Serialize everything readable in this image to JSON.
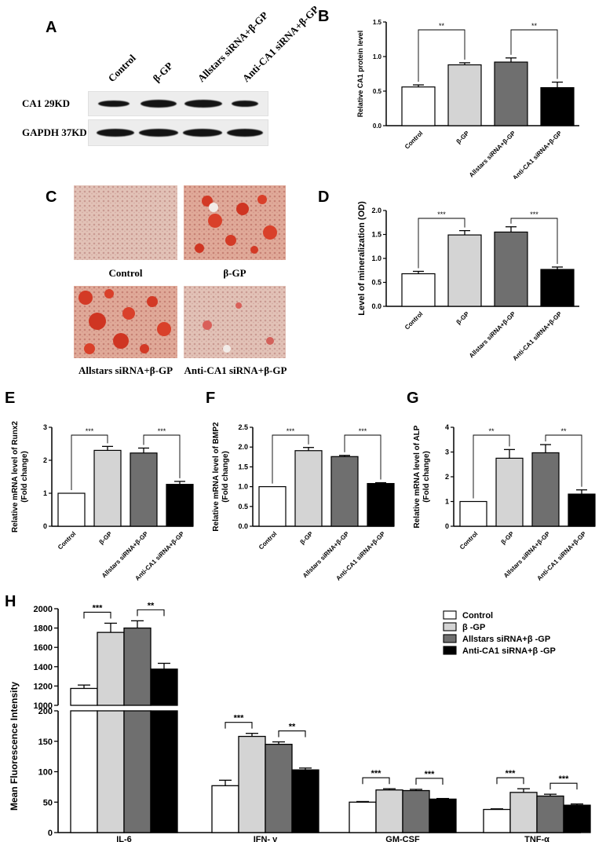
{
  "panels": {
    "a": "A",
    "b": "B",
    "c": "C",
    "d": "D",
    "e": "E",
    "f": "F",
    "g": "G",
    "h": "H"
  },
  "western_blot": {
    "lanes": [
      "Control",
      "β-GP",
      "Allstars siRNA+β-GP",
      "Anti-CA1 siRNA+β-GP"
    ],
    "rows": [
      "CA1  29KD",
      "GAPDH 37KD"
    ]
  },
  "staining": {
    "captions": [
      "Control",
      "β-GP",
      "Allstars siRNA+β-GP",
      "Anti-CA1 siRNA+β-GP"
    ]
  },
  "colors": {
    "control": "#ffffff",
    "bgp": "#d4d4d4",
    "allstars": "#6f6f6f",
    "anti": "#000000",
    "stain_red": "#d9402a",
    "stain_bg": "#e3b9a9"
  },
  "chart_data": [
    {
      "id": "B",
      "type": "bar",
      "categories": [
        "Control",
        "β-GP",
        "Allstars siRNA+β-GP",
        "Anti-CA1 siRNA+β-GP"
      ],
      "values": [
        0.56,
        0.88,
        0.92,
        0.55
      ],
      "errors": [
        0.03,
        0.03,
        0.06,
        0.08
      ],
      "ylabel": "Relative CA1 protein level",
      "ylim": [
        0,
        1.5
      ],
      "yticks": [
        0.0,
        0.5,
        1.0,
        1.5
      ],
      "annotations": [
        {
          "from": 0,
          "to": 1,
          "text": "**"
        },
        {
          "from": 2,
          "to": 3,
          "text": "**"
        }
      ]
    },
    {
      "id": "D",
      "type": "bar",
      "categories": [
        "Control",
        "β-GP",
        "Allstars siRNA+β-GP",
        "Anti-CA1 siRNA+β-GP"
      ],
      "values": [
        0.68,
        1.49,
        1.55,
        0.77
      ],
      "errors": [
        0.05,
        0.09,
        0.11,
        0.05
      ],
      "ylabel": "Level of mineralization (OD)",
      "ylim": [
        0,
        2.0
      ],
      "yticks": [
        0.0,
        0.5,
        1.0,
        1.5,
        2.0
      ],
      "annotations": [
        {
          "from": 0,
          "to": 1,
          "text": "***"
        },
        {
          "from": 2,
          "to": 3,
          "text": "***"
        }
      ]
    },
    {
      "id": "E",
      "type": "bar",
      "categories": [
        "Control",
        "β-GP",
        "Allstars siRNA+β-GP",
        "Anti-CA1 siRNA+β-GP"
      ],
      "values": [
        1.0,
        2.3,
        2.22,
        1.27
      ],
      "errors": [
        0.0,
        0.12,
        0.15,
        0.09
      ],
      "ylabel": "Relative mRNA level of Runx2\n(Fold change)",
      "ylim": [
        0,
        3
      ],
      "yticks": [
        0,
        1,
        2,
        3
      ],
      "annotations": [
        {
          "from": 0,
          "to": 1,
          "text": "***"
        },
        {
          "from": 2,
          "to": 3,
          "text": "***"
        }
      ]
    },
    {
      "id": "F",
      "type": "bar",
      "categories": [
        "Control",
        "β-GP",
        "Allstars siRNA+β-GP",
        "Anti-CA1 siRNA+β-GP"
      ],
      "values": [
        1.0,
        1.91,
        1.76,
        1.08
      ],
      "errors": [
        0.0,
        0.08,
        0.03,
        0.02
      ],
      "ylabel": "Relative mRNA level of BMP2\n(Fold change)",
      "ylim": [
        0,
        2.5
      ],
      "yticks": [
        0.0,
        0.5,
        1.0,
        1.5,
        2.0,
        2.5
      ],
      "annotations": [
        {
          "from": 0,
          "to": 1,
          "text": "***"
        },
        {
          "from": 2,
          "to": 3,
          "text": "***"
        }
      ]
    },
    {
      "id": "G",
      "type": "bar",
      "categories": [
        "Control",
        "β-GP",
        "Allstars siRNA+β-GP",
        "Anti-CA1 siRNA+β-GP"
      ],
      "values": [
        1.0,
        2.75,
        2.97,
        1.3
      ],
      "errors": [
        0.0,
        0.35,
        0.33,
        0.17
      ],
      "ylabel": "Relative mRNA level of ALP\n(Fold change)",
      "ylim": [
        0,
        4
      ],
      "yticks": [
        0,
        1,
        2,
        3,
        4
      ],
      "annotations": [
        {
          "from": 0,
          "to": 1,
          "text": "**"
        },
        {
          "from": 2,
          "to": 3,
          "text": "**"
        }
      ]
    },
    {
      "id": "H",
      "type": "bar",
      "categories": [
        "IL-6",
        "IFN- γ",
        "GM-CSF",
        "TNF-α"
      ],
      "series": [
        {
          "name": "Control",
          "values": [
            1175,
            77,
            50,
            38
          ],
          "errors": [
            35,
            9,
            1,
            1
          ]
        },
        {
          "name": "β -GP",
          "values": [
            1755,
            158,
            70,
            66
          ],
          "errors": [
            95,
            5,
            2,
            6
          ]
        },
        {
          "name": "Allstars siRNA+β -GP",
          "values": [
            1800,
            145,
            69,
            60
          ],
          "errors": [
            75,
            4,
            2,
            3
          ]
        },
        {
          "name": "Anti-CA1 siRNA+β -GP",
          "values": [
            1375,
            103,
            55,
            45
          ],
          "errors": [
            60,
            3,
            1,
            2
          ]
        }
      ],
      "ylabel": "Mean Fluorescence Intensity",
      "axis_break": true,
      "ylim_lower": [
        0,
        200
      ],
      "yticks_lower": [
        0,
        50,
        100,
        150,
        200
      ],
      "ylim_upper": [
        1000,
        2000
      ],
      "yticks_upper": [
        1000,
        1200,
        1400,
        1600,
        1800,
        2000
      ],
      "legend": "top-right",
      "annotations": [
        {
          "group": 0,
          "from": 0,
          "to": 1,
          "text": "***"
        },
        {
          "group": 0,
          "from": 2,
          "to": 3,
          "text": "**"
        },
        {
          "group": 1,
          "from": 0,
          "to": 1,
          "text": "***"
        },
        {
          "group": 1,
          "from": 2,
          "to": 3,
          "text": "**"
        },
        {
          "group": 2,
          "from": 0,
          "to": 1,
          "text": "***"
        },
        {
          "group": 2,
          "from": 2,
          "to": 3,
          "text": "***"
        },
        {
          "group": 3,
          "from": 0,
          "to": 1,
          "text": "***"
        },
        {
          "group": 3,
          "from": 2,
          "to": 3,
          "text": "***"
        }
      ]
    }
  ]
}
